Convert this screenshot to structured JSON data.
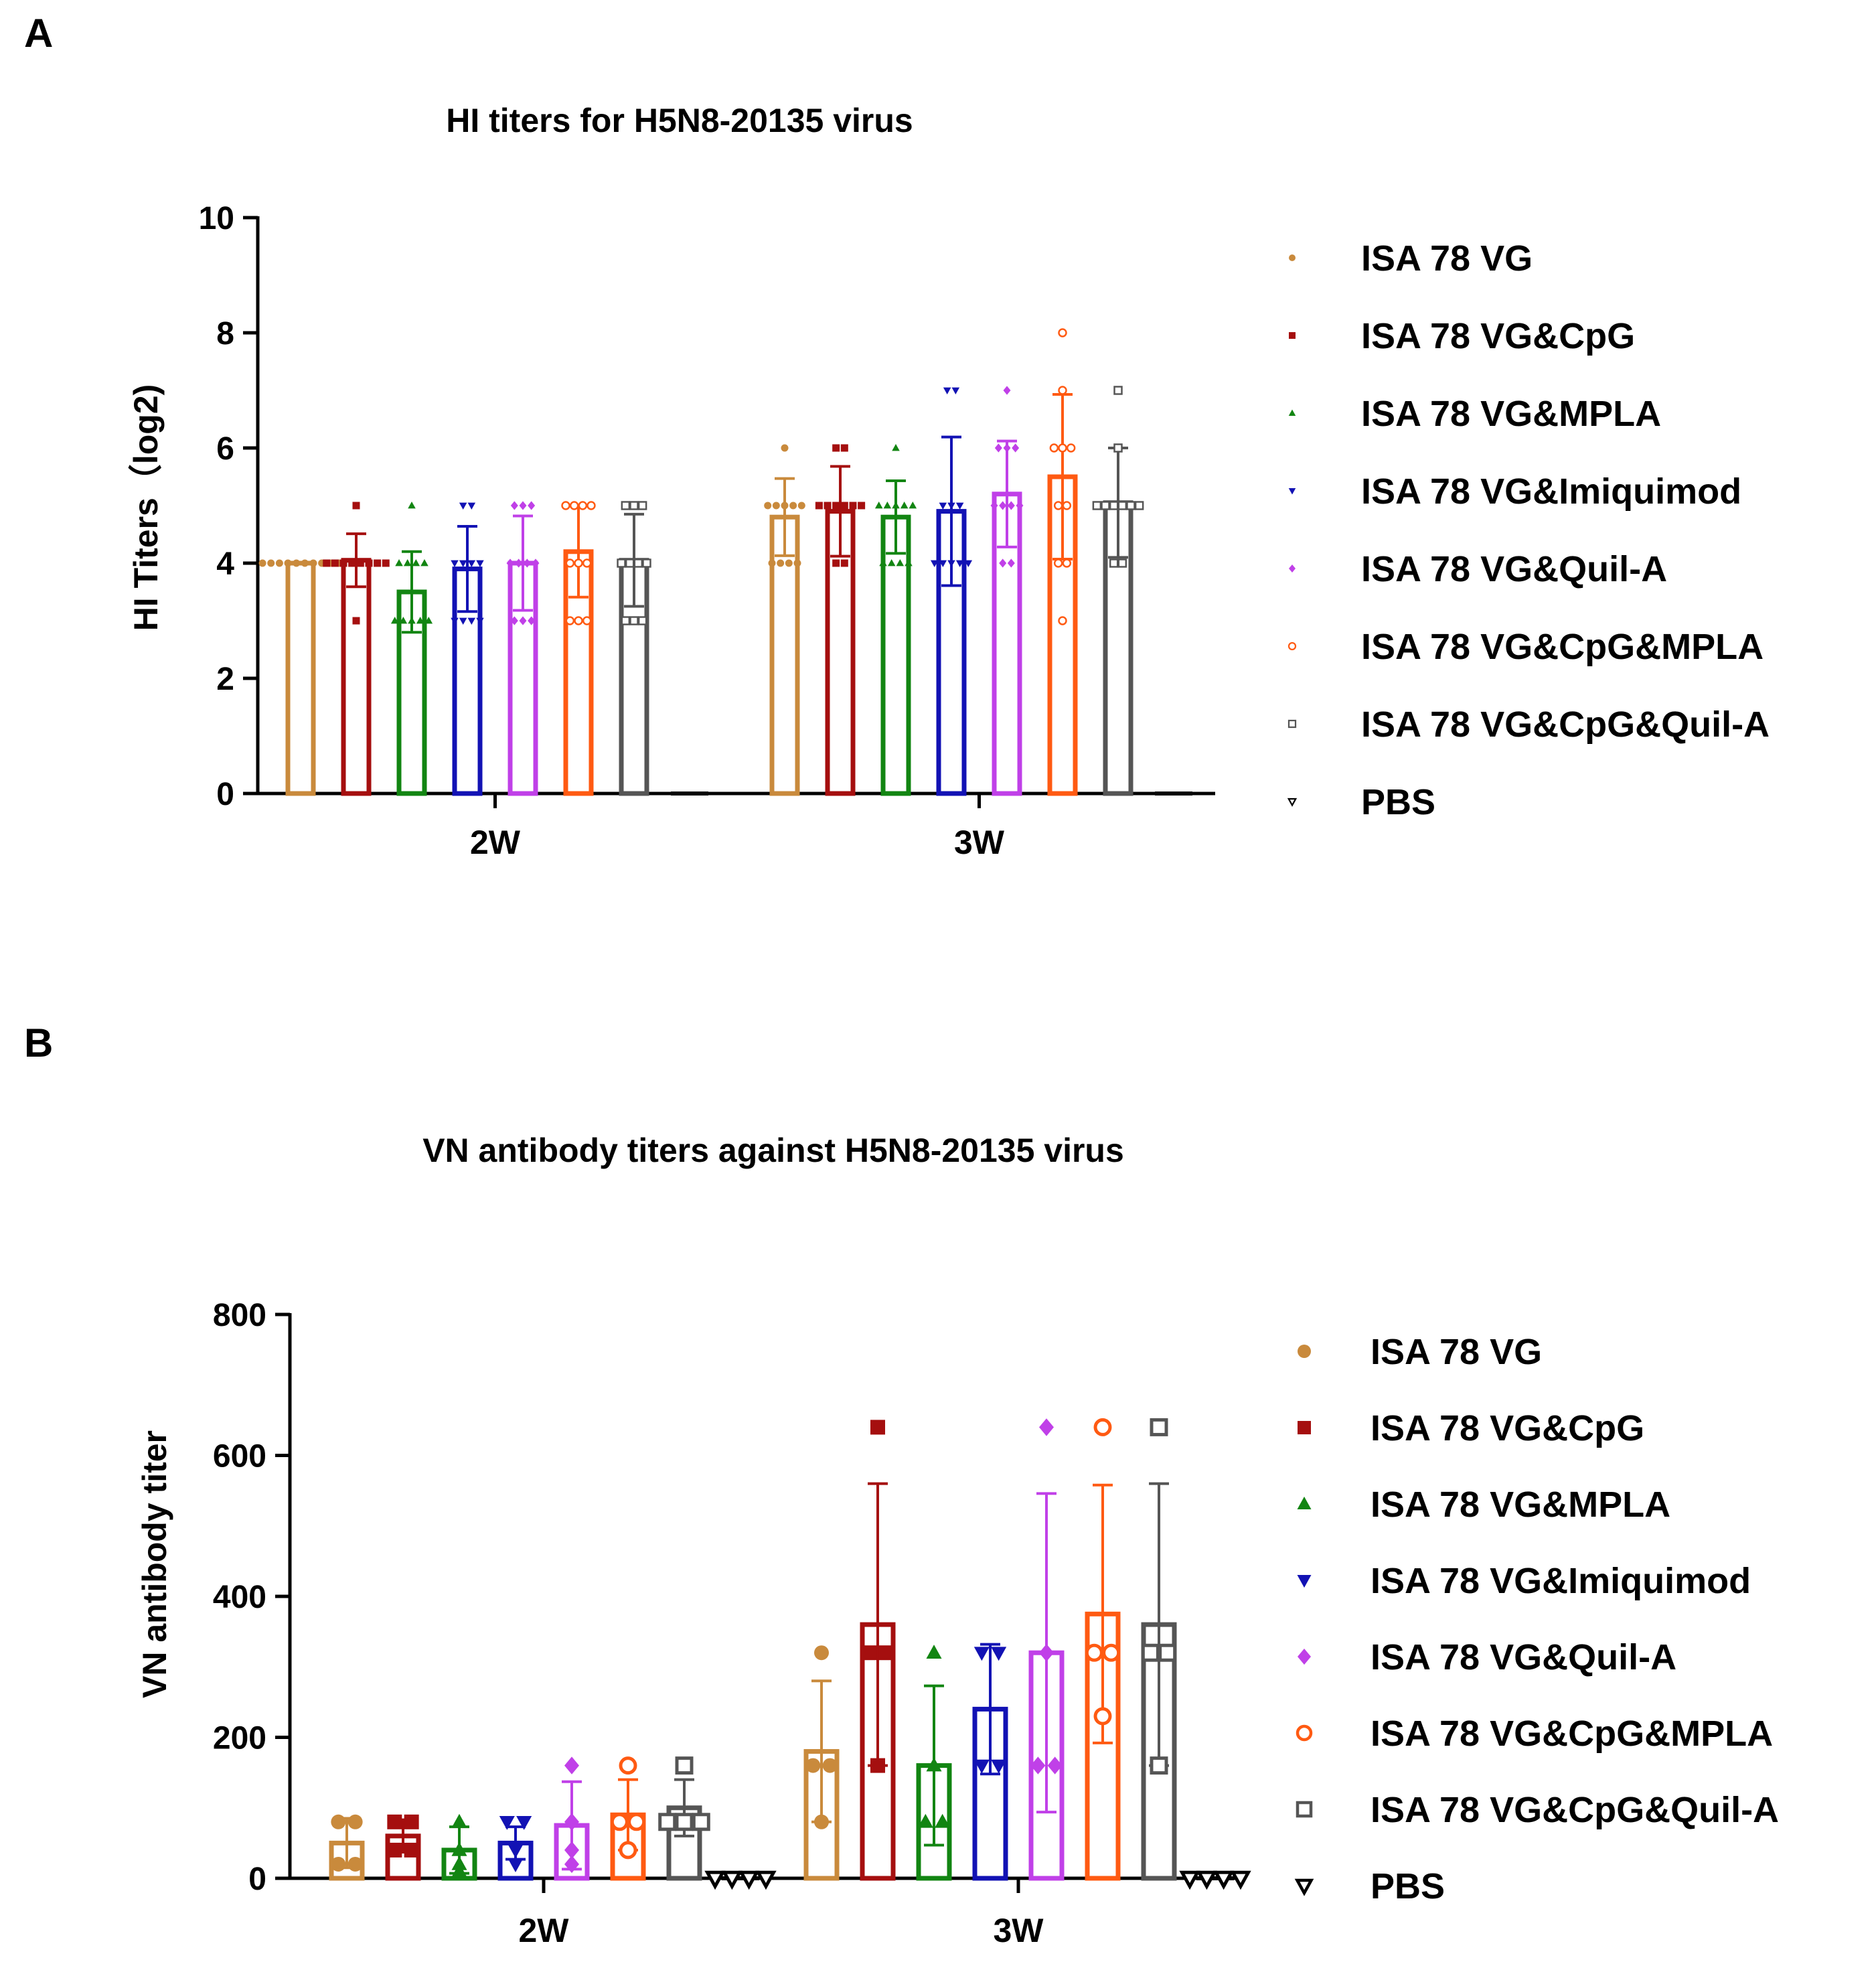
{
  "groups": [
    {
      "name": "ISA 78 VG",
      "color": "#C98A3C",
      "marker": "circle"
    },
    {
      "name": "ISA 78 VG&CpG",
      "color": "#A50F0F",
      "marker": "square"
    },
    {
      "name": "ISA 78 VG&MPLA",
      "color": "#128512",
      "marker": "triangle-up"
    },
    {
      "name": "ISA 78 VG&Imiquimod",
      "color": "#1212B4",
      "marker": "triangle-down"
    },
    {
      "name": "ISA 78 VG&Quil-A",
      "color": "#C040E8",
      "marker": "diamond"
    },
    {
      "name": "ISA 78 VG&CpG&MPLA",
      "color": "#FF5A12",
      "marker": "circle-open"
    },
    {
      "name": "ISA 78 VG&CpG&Quil-A",
      "color": "#555555",
      "marker": "square-open"
    },
    {
      "name": "PBS",
      "color": "#000000",
      "marker": "triangle-down-open"
    }
  ],
  "chart_data": [
    {
      "panel_label": "A",
      "type": "bar",
      "title": "HI titers for H5N8-20135 virus",
      "xlabel": "",
      "ylabel": "HI Titers（log2)",
      "ylim": [
        0,
        10
      ],
      "yticks": [
        0,
        2,
        4,
        6,
        8,
        10
      ],
      "categories": [
        "2W",
        "3W"
      ],
      "legend_position": "right",
      "series": [
        {
          "name": "ISA 78 VG",
          "values": [
            4.0,
            4.8
          ],
          "sd": [
            0.0,
            0.67
          ],
          "points": [
            [
              4,
              4,
              4,
              4,
              4,
              4,
              4,
              4,
              4,
              4
            ],
            [
              4,
              4,
              4,
              4,
              5,
              5,
              5,
              5,
              5,
              6
            ]
          ]
        },
        {
          "name": "ISA 78 VG&CpG",
          "values": [
            4.05,
            4.9
          ],
          "sd": [
            0.46,
            0.78
          ],
          "points": [
            [
              3,
              4,
              4,
              4,
              4,
              4,
              4,
              4,
              4,
              5
            ],
            [
              4,
              4,
              5,
              5,
              5,
              5,
              5,
              5,
              6,
              6
            ]
          ]
        },
        {
          "name": "ISA 78 VG&MPLA",
          "values": [
            3.5,
            4.8
          ],
          "sd": [
            0.7,
            0.63
          ],
          "points": [
            [
              3,
              3,
              3,
              3,
              3,
              4,
              4,
              4,
              4,
              5
            ],
            [
              4,
              4,
              4,
              4,
              5,
              5,
              5,
              5,
              5,
              6
            ]
          ]
        },
        {
          "name": "ISA 78 VG&Imiquimod",
          "values": [
            3.9,
            4.9
          ],
          "sd": [
            0.74,
            1.29
          ],
          "points": [
            [
              3,
              3,
              3,
              3,
              4,
              4,
              4,
              4,
              5,
              5
            ],
            [
              4,
              4,
              4,
              4,
              5,
              5,
              5,
              7,
              7,
              4
            ]
          ]
        },
        {
          "name": "ISA 78 VG&Quil-A",
          "values": [
            4.0,
            5.2
          ],
          "sd": [
            0.82,
            0.92
          ],
          "points": [
            [
              3,
              3,
              3,
              4,
              4,
              4,
              4,
              5,
              5,
              5
            ],
            [
              4,
              4,
              5,
              5,
              5,
              5,
              6,
              6,
              6,
              7
            ]
          ]
        },
        {
          "name": "ISA 78 VG&CpG&MPLA",
          "values": [
            4.2,
            5.5
          ],
          "sd": [
            0.79,
            1.43
          ],
          "points": [
            [
              3,
              3,
              3,
              4,
              4,
              4,
              5,
              5,
              5,
              5
            ],
            [
              3,
              4,
              4,
              5,
              5,
              6,
              6,
              6,
              7,
              8
            ]
          ]
        },
        {
          "name": "ISA 78 VG&CpG&Quil-A",
          "values": [
            4.05,
            5.05
          ],
          "sd": [
            0.8,
            0.95
          ],
          "points": [
            [
              3,
              3,
              3,
              4,
              4,
              4,
              4,
              5,
              5,
              5
            ],
            [
              4,
              4,
              5,
              5,
              5,
              5,
              5,
              5,
              6,
              7
            ]
          ]
        },
        {
          "name": "PBS",
          "values": [
            0,
            0
          ],
          "sd": [
            0,
            0
          ],
          "points": [
            [],
            []
          ]
        }
      ]
    },
    {
      "panel_label": "B",
      "type": "bar",
      "title": "VN antibody titers against H5N8-20135 virus",
      "xlabel": "",
      "ylabel": "VN antibody titer",
      "ylim": [
        0,
        800
      ],
      "yticks": [
        0,
        200,
        400,
        600,
        800
      ],
      "categories": [
        "2W",
        "3W"
      ],
      "legend_position": "right",
      "series": [
        {
          "name": "ISA 78 VG",
          "values": [
            50,
            180
          ],
          "sd": [
            35,
            100
          ],
          "points": [
            [
              20,
              20,
              80,
              80
            ],
            [
              80,
              160,
              160,
              320
            ]
          ]
        },
        {
          "name": "ISA 78 VG&CpG",
          "values": [
            60,
            360
          ],
          "sd": [
            23,
            200
          ],
          "points": [
            [
              40,
              40,
              80,
              80
            ],
            [
              160,
              320,
              320,
              640
            ]
          ]
        },
        {
          "name": "ISA 78 VG&MPLA",
          "values": [
            40,
            160
          ],
          "sd": [
            33,
            113
          ],
          "points": [
            [
              10,
              20,
              40,
              80
            ],
            [
              80,
              80,
              160,
              320
            ]
          ]
        },
        {
          "name": "ISA 78 VG&Imiquimod",
          "values": [
            50,
            240
          ],
          "sd": [
            23,
            92
          ],
          "points": [
            [
              20,
              40,
              80,
              80
            ],
            [
              160,
              160,
              320,
              320
            ]
          ]
        },
        {
          "name": "ISA 78 VG&Quil-A",
          "values": [
            75,
            320
          ],
          "sd": [
            62,
            226
          ],
          "points": [
            [
              20,
              40,
              80,
              160
            ],
            [
              160,
              160,
              320,
              640
            ]
          ]
        },
        {
          "name": "ISA 78 VG&CpG&MPLA",
          "values": [
            90,
            375
          ],
          "sd": [
            50,
            183
          ],
          "points": [
            [
              40,
              80,
              80,
              160
            ],
            [
              230,
              320,
              320,
              640
            ]
          ]
        },
        {
          "name": "ISA 78 VG&CpG&Quil-A",
          "values": [
            100,
            360
          ],
          "sd": [
            40,
            200
          ],
          "points": [
            [
              80,
              80,
              80,
              160
            ],
            [
              160,
              320,
              320,
              640
            ]
          ]
        },
        {
          "name": "PBS",
          "values": [
            0,
            0
          ],
          "sd": [
            0,
            0
          ],
          "points": [
            [
              0,
              0,
              0,
              0
            ],
            [
              0,
              0,
              0,
              0
            ]
          ]
        }
      ]
    }
  ]
}
